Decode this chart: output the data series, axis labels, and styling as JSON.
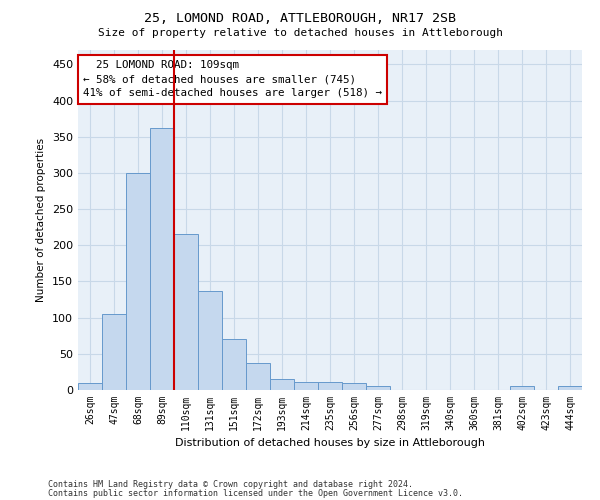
{
  "title": "25, LOMOND ROAD, ATTLEBOROUGH, NR17 2SB",
  "subtitle": "Size of property relative to detached houses in Attleborough",
  "xlabel": "Distribution of detached houses by size in Attleborough",
  "ylabel": "Number of detached properties",
  "footer_line1": "Contains HM Land Registry data © Crown copyright and database right 2024.",
  "footer_line2": "Contains public sector information licensed under the Open Government Licence v3.0.",
  "categories": [
    "26sqm",
    "47sqm",
    "68sqm",
    "89sqm",
    "110sqm",
    "131sqm",
    "151sqm",
    "172sqm",
    "193sqm",
    "214sqm",
    "235sqm",
    "256sqm",
    "277sqm",
    "298sqm",
    "319sqm",
    "340sqm",
    "360sqm",
    "381sqm",
    "402sqm",
    "423sqm",
    "444sqm"
  ],
  "values": [
    10,
    105,
    300,
    362,
    215,
    137,
    70,
    38,
    15,
    11,
    11,
    10,
    5,
    0,
    0,
    0,
    0,
    0,
    5,
    0,
    5
  ],
  "bar_color": "#c5d8ee",
  "bar_edge_color": "#6699cc",
  "grid_color": "#c8d8e8",
  "background_color": "#e8f0f8",
  "vline_x": 3.5,
  "vline_color": "#cc0000",
  "annotation_line1": "  25 LOMOND ROAD: 109sqm",
  "annotation_line2": "← 58% of detached houses are smaller (745)",
  "annotation_line3": "41% of semi-detached houses are larger (518) →",
  "annotation_box_color": "#cc0000",
  "ylim": [
    0,
    470
  ],
  "yticks": [
    0,
    50,
    100,
    150,
    200,
    250,
    300,
    350,
    400,
    450
  ]
}
